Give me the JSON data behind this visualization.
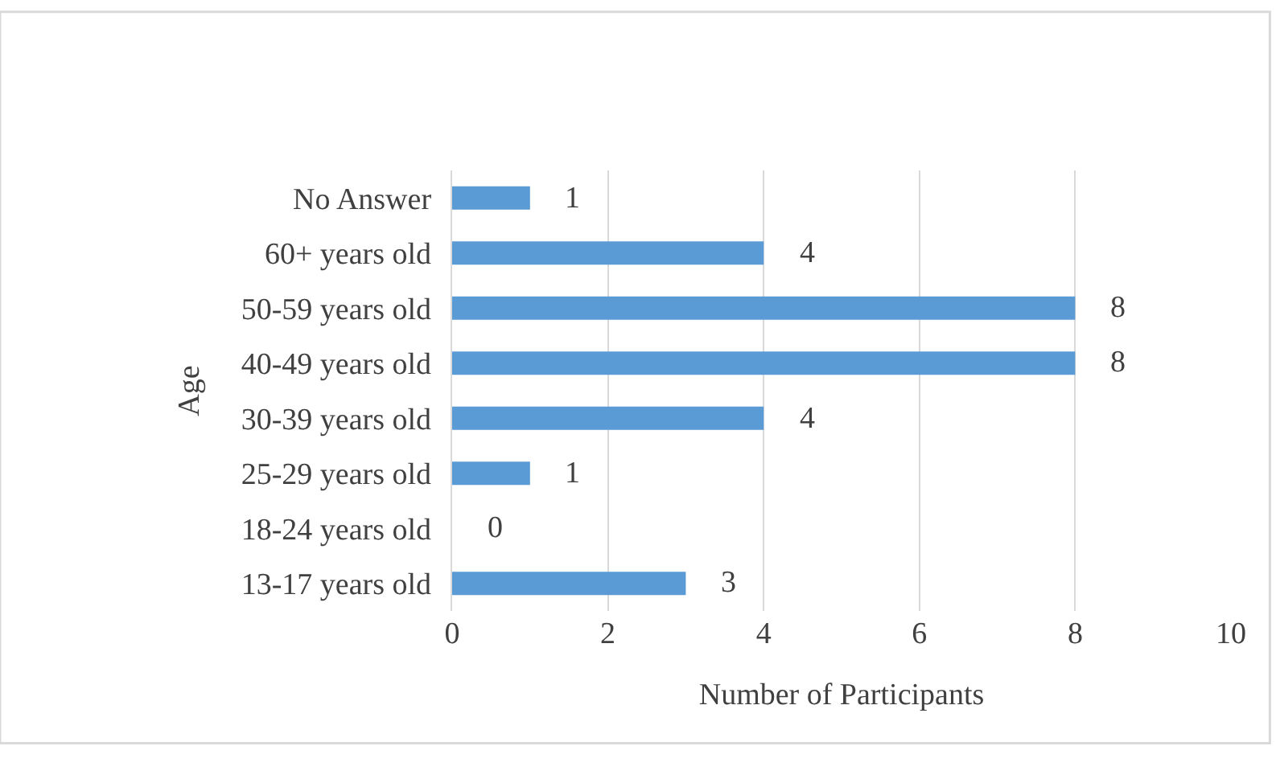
{
  "chart_data": {
    "type": "bar",
    "orientation": "horizontal",
    "xlabel": "Number of Participants",
    "ylabel": "Age",
    "categories": [
      "No Answer",
      "60+ years old",
      "50-59 years old",
      "40-49 years old",
      "30-39 years old",
      "25-29 years old",
      "18-24 years old",
      "13-17 years old"
    ],
    "values": [
      1,
      4,
      8,
      8,
      4,
      1,
      0,
      3
    ],
    "color": "#5b9bd5",
    "xlim": [
      0,
      10
    ],
    "xticks": [
      0,
      2,
      4,
      6,
      8,
      10
    ],
    "grid": "x",
    "data_labels": true
  }
}
